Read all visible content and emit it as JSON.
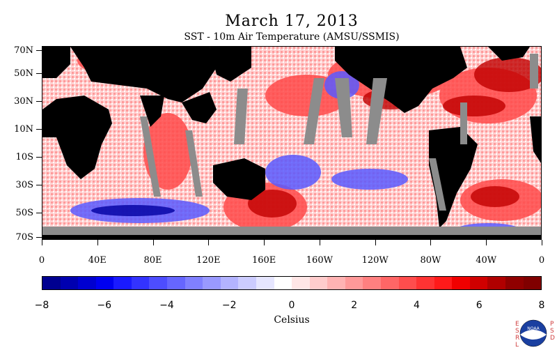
{
  "title": "March 17, 2013",
  "subtitle": "SST - 10m Air Temperature (AMSU/SSMIS)",
  "lat_labels": [
    "70N",
    "50N",
    "30N",
    "10N",
    "10S",
    "30S",
    "50S",
    "70S"
  ],
  "lon_labels": [
    "0",
    "40E",
    "80E",
    "120E",
    "160E",
    "160W",
    "120W",
    "80W",
    "40W",
    "0"
  ],
  "colorbar": {
    "labels": [
      "−8",
      "−6",
      "−4",
      "−2",
      "0",
      "2",
      "4",
      "6",
      "8"
    ],
    "unit": "Celsius",
    "colors": [
      "#000090",
      "#0000b0",
      "#0000d0",
      "#0000f0",
      "#1a1aff",
      "#3333ff",
      "#4d4dff",
      "#6666ff",
      "#8080ff",
      "#9999ff",
      "#b3b3ff",
      "#ccccff",
      "#e6e6ff",
      "#ffffff",
      "#ffe6e6",
      "#ffcccc",
      "#ffb3b3",
      "#ff9999",
      "#ff8080",
      "#ff6666",
      "#ff4d4d",
      "#ff3333",
      "#ff1a1a",
      "#f00000",
      "#d00000",
      "#b00000",
      "#900000",
      "#800000"
    ]
  },
  "org_left": [
    "E",
    "S",
    "R",
    "L"
  ],
  "org_right": [
    "P",
    "S",
    "D"
  ],
  "logo_text": "NOAA",
  "colors": {
    "land": "#000000",
    "missing": "#8c8c8c",
    "warm": "#ff3c3c",
    "cool": "#6a6aff"
  }
}
